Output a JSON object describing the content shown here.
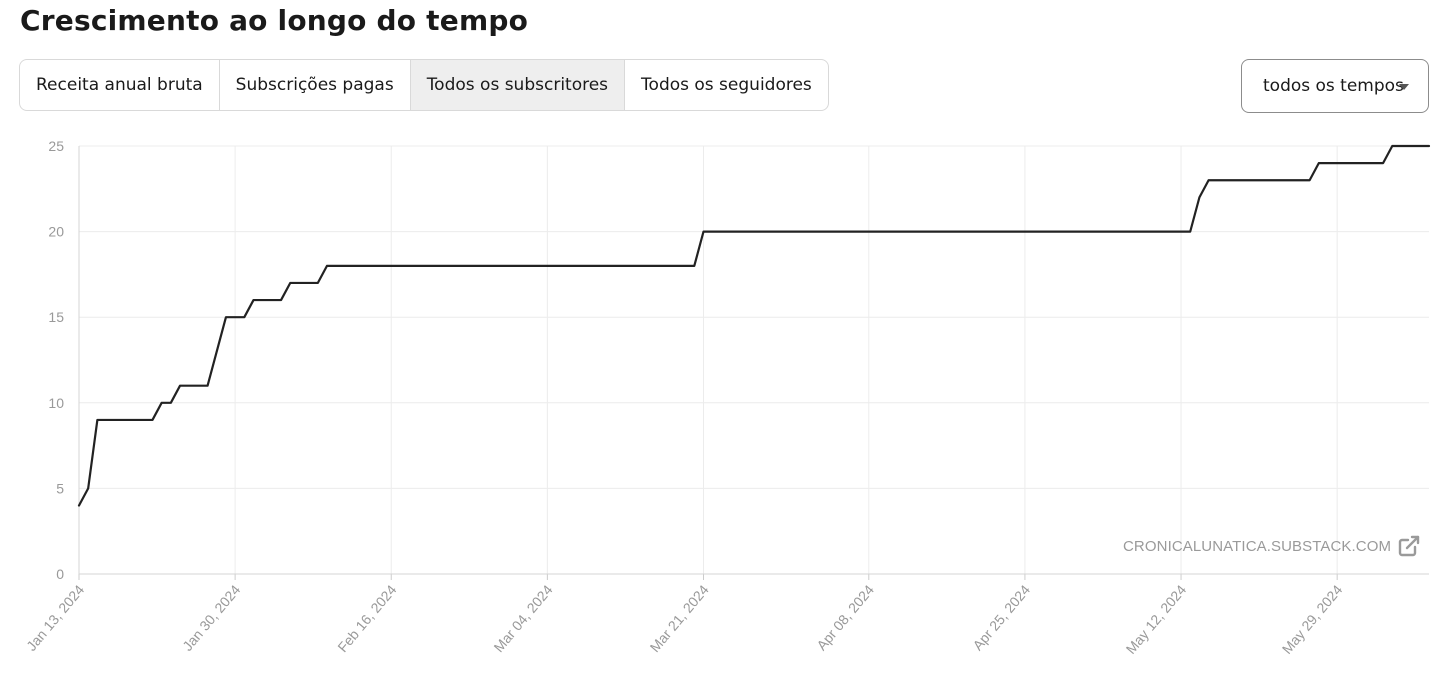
{
  "header": {
    "title": "Crescimento ao longo do tempo"
  },
  "tabs": [
    {
      "label": "Receita anual bruta",
      "active": false
    },
    {
      "label": "Subscrições pagas",
      "active": false
    },
    {
      "label": "Todos os subscritores",
      "active": true
    },
    {
      "label": "Todos os seguidores",
      "active": false
    }
  ],
  "range_select": {
    "value": "todos os tempos"
  },
  "watermark": {
    "text": "CRONICALUNATICA.SUBSTACK.COM",
    "icon": "external-link-icon"
  },
  "chart_data": {
    "type": "line",
    "title": "",
    "xlabel": "",
    "ylabel": "",
    "ylim": [
      0,
      25
    ],
    "xlim": [
      "2024-01-13",
      "2024-06-08"
    ],
    "grid": true,
    "line_color": "#222222",
    "yticks": [
      0,
      5,
      10,
      15,
      20,
      25
    ],
    "xticks": [
      {
        "date": "2024-01-13",
        "label": "Jan 13, 2024"
      },
      {
        "date": "2024-01-30",
        "label": "Jan 30, 2024"
      },
      {
        "date": "2024-02-16",
        "label": "Feb 16, 2024"
      },
      {
        "date": "2024-03-04",
        "label": "Mar 04, 2024"
      },
      {
        "date": "2024-03-21",
        "label": "Mar 21, 2024"
      },
      {
        "date": "2024-04-08",
        "label": "Apr 08, 2024"
      },
      {
        "date": "2024-04-25",
        "label": "Apr 25, 2024"
      },
      {
        "date": "2024-05-12",
        "label": "May 12, 2024"
      },
      {
        "date": "2024-05-29",
        "label": "May 29, 2024"
      }
    ],
    "series": [
      {
        "points": [
          {
            "x": "2024-01-13",
            "y": 4
          },
          {
            "x": "2024-01-14",
            "y": 5
          },
          {
            "x": "2024-01-15",
            "y": 9
          },
          {
            "x": "2024-01-21",
            "y": 9
          },
          {
            "x": "2024-01-22",
            "y": 10
          },
          {
            "x": "2024-01-23",
            "y": 10
          },
          {
            "x": "2024-01-24",
            "y": 11
          },
          {
            "x": "2024-01-27",
            "y": 11
          },
          {
            "x": "2024-01-29",
            "y": 15
          },
          {
            "x": "2024-01-31",
            "y": 15
          },
          {
            "x": "2024-02-01",
            "y": 16
          },
          {
            "x": "2024-02-04",
            "y": 16
          },
          {
            "x": "2024-02-05",
            "y": 17
          },
          {
            "x": "2024-02-08",
            "y": 17
          },
          {
            "x": "2024-02-09",
            "y": 18
          },
          {
            "x": "2024-03-20",
            "y": 18
          },
          {
            "x": "2024-03-21",
            "y": 20
          },
          {
            "x": "2024-05-13",
            "y": 20
          },
          {
            "x": "2024-05-14",
            "y": 22
          },
          {
            "x": "2024-05-15",
            "y": 23
          },
          {
            "x": "2024-05-26",
            "y": 23
          },
          {
            "x": "2024-05-27",
            "y": 24
          },
          {
            "x": "2024-06-03",
            "y": 24
          },
          {
            "x": "2024-06-04",
            "y": 25
          },
          {
            "x": "2024-06-08",
            "y": 25
          }
        ]
      }
    ]
  }
}
